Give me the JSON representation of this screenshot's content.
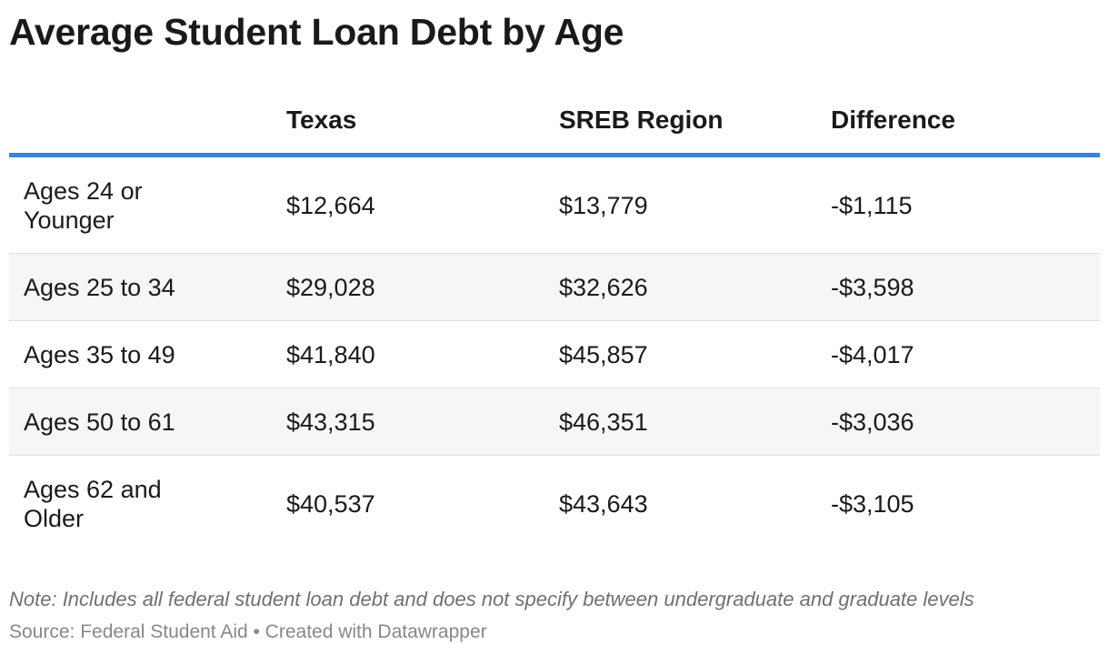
{
  "title": "Average Student Loan Debt by Age",
  "chart_data": {
    "type": "table",
    "title": "Average Student Loan Debt by Age",
    "columns": [
      "",
      "Texas",
      "SREB Region",
      "Difference"
    ],
    "rows": [
      {
        "label": "Ages 24 or Younger",
        "texas": "$12,664",
        "sreb": "$13,779",
        "difference": "-$1,115"
      },
      {
        "label": "Ages 25 to 34",
        "texas": "$29,028",
        "sreb": "$32,626",
        "difference": "-$3,598"
      },
      {
        "label": "Ages 35 to 49",
        "texas": "$41,840",
        "sreb": "$45,857",
        "difference": "-$4,017"
      },
      {
        "label": "Ages 50 to 61",
        "texas": "$43,315",
        "sreb": "$46,351",
        "difference": "-$3,036"
      },
      {
        "label": "Ages 62 and Older",
        "texas": "$40,537",
        "sreb": "$43,643",
        "difference": "-$3,105"
      }
    ],
    "header_rule_color": "#3a84d6",
    "stripe_color": "#f6f6f6"
  },
  "footer": {
    "note": "Note: Includes all federal student loan debt and does not specify between undergraduate and graduate levels",
    "source": "Source: Federal Student Aid • Created with Datawrapper"
  }
}
